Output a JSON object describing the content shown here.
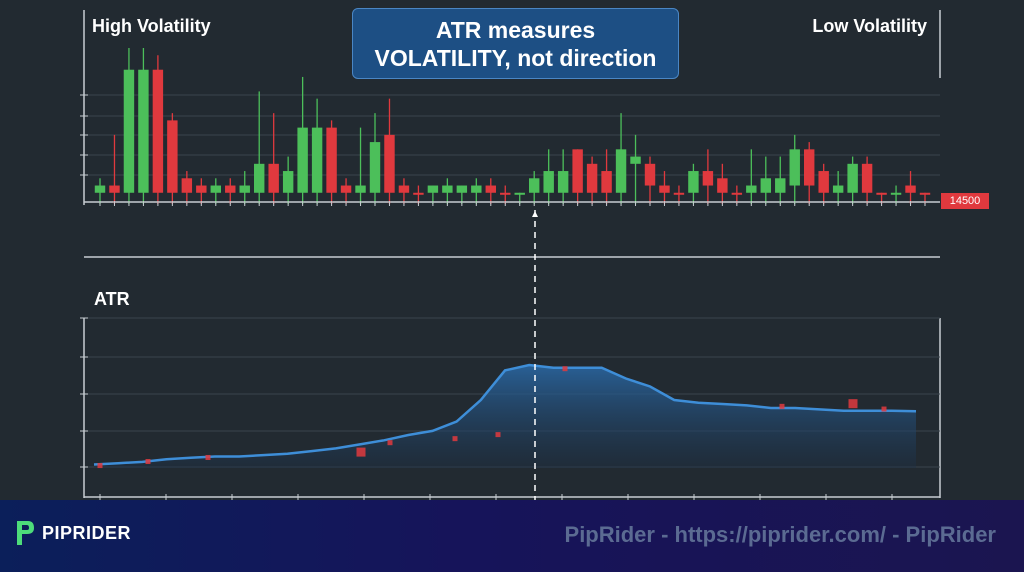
{
  "header": {
    "left_label": "High Volatility",
    "right_label": "Low Volatility",
    "callout_line1": "ATR measures",
    "callout_line2": "VOLATILITY, not direction"
  },
  "price_tag": "14500",
  "atr_panel": {
    "label": "ATR"
  },
  "footer": {
    "brand": "PIPRIDER",
    "watermark": "PipRider - https://piprider.com/ - PipRider"
  },
  "colors": {
    "up": "#4cbf5a",
    "down": "#e0393e",
    "atr_line": "#3e8ed8",
    "atr_fill": "#1f4f7a",
    "marker": "#e0393e"
  },
  "chart_data": [
    {
      "type": "candlestick",
      "title": "",
      "series": [
        {
          "name": "",
          "values": [
            {
              "o": 1,
              "h": 3,
              "l": 0,
              "c": 2,
              "dir": "up"
            },
            {
              "o": 2,
              "h": 9,
              "l": 0,
              "c": 1,
              "dir": "down"
            },
            {
              "o": 1,
              "h": 21,
              "l": 0,
              "c": 18,
              "dir": "up"
            },
            {
              "o": 1,
              "h": 21,
              "l": 0,
              "c": 18,
              "dir": "up"
            },
            {
              "o": 18,
              "h": 20,
              "l": 0,
              "c": 1,
              "dir": "down"
            },
            {
              "o": 11,
              "h": 12,
              "l": 0,
              "c": 1,
              "dir": "down"
            },
            {
              "o": 3,
              "h": 4,
              "l": 0,
              "c": 1,
              "dir": "down"
            },
            {
              "o": 2,
              "h": 3,
              "l": 0,
              "c": 1,
              "dir": "down"
            },
            {
              "o": 1,
              "h": 3,
              "l": 0,
              "c": 2,
              "dir": "up"
            },
            {
              "o": 2,
              "h": 3,
              "l": 0,
              "c": 1,
              "dir": "down"
            },
            {
              "o": 1,
              "h": 4,
              "l": 0,
              "c": 2,
              "dir": "up"
            },
            {
              "o": 1,
              "h": 15,
              "l": 0,
              "c": 5,
              "dir": "up"
            },
            {
              "o": 5,
              "h": 12,
              "l": 0,
              "c": 1,
              "dir": "down"
            },
            {
              "o": 1,
              "h": 6,
              "l": 0,
              "c": 4,
              "dir": "up"
            },
            {
              "o": 1,
              "h": 17,
              "l": 0,
              "c": 10,
              "dir": "up"
            },
            {
              "o": 1,
              "h": 14,
              "l": 0,
              "c": 10,
              "dir": "up"
            },
            {
              "o": 10,
              "h": 11,
              "l": 0,
              "c": 1,
              "dir": "down"
            },
            {
              "o": 2,
              "h": 3,
              "l": 0,
              "c": 1,
              "dir": "down"
            },
            {
              "o": 1,
              "h": 10,
              "l": 0,
              "c": 2,
              "dir": "up"
            },
            {
              "o": 1,
              "h": 12,
              "l": 0,
              "c": 8,
              "dir": "up"
            },
            {
              "o": 9,
              "h": 14,
              "l": 0,
              "c": 1,
              "dir": "down"
            },
            {
              "o": 2,
              "h": 3,
              "l": 0,
              "c": 1,
              "dir": "down"
            },
            {
              "o": 1,
              "h": 2,
              "l": 0,
              "c": 1,
              "dir": "down"
            },
            {
              "o": 1,
              "h": 2,
              "l": 0,
              "c": 2,
              "dir": "up"
            },
            {
              "o": 1,
              "h": 3,
              "l": 0,
              "c": 2,
              "dir": "up"
            },
            {
              "o": 1,
              "h": 2,
              "l": 0,
              "c": 2,
              "dir": "up"
            },
            {
              "o": 1,
              "h": 3,
              "l": 0,
              "c": 2,
              "dir": "up"
            },
            {
              "o": 2,
              "h": 3,
              "l": 0,
              "c": 1,
              "dir": "down"
            },
            {
              "o": 1,
              "h": 2,
              "l": 0,
              "c": 1,
              "dir": "down"
            },
            {
              "o": 1,
              "h": 1,
              "l": 0,
              "c": 1,
              "dir": "up"
            },
            {
              "o": 1,
              "h": 4,
              "l": 0,
              "c": 3,
              "dir": "up"
            },
            {
              "o": 1,
              "h": 7,
              "l": 0,
              "c": 4,
              "dir": "up"
            },
            {
              "o": 1,
              "h": 7,
              "l": 0,
              "c": 4,
              "dir": "up"
            },
            {
              "o": 7,
              "h": 7,
              "l": 0,
              "c": 1,
              "dir": "down"
            },
            {
              "o": 5,
              "h": 6,
              "l": 0,
              "c": 1,
              "dir": "down"
            },
            {
              "o": 4,
              "h": 7,
              "l": 0,
              "c": 1,
              "dir": "down"
            },
            {
              "o": 1,
              "h": 12,
              "l": 0,
              "c": 7,
              "dir": "up"
            },
            {
              "o": 6,
              "h": 9,
              "l": 0,
              "c": 5,
              "dir": "up"
            },
            {
              "o": 5,
              "h": 6,
              "l": 0,
              "c": 2,
              "dir": "down"
            },
            {
              "o": 2,
              "h": 4,
              "l": 0,
              "c": 1,
              "dir": "down"
            },
            {
              "o": 1,
              "h": 2,
              "l": 0,
              "c": 1,
              "dir": "down"
            },
            {
              "o": 1,
              "h": 5,
              "l": 0,
              "c": 4,
              "dir": "up"
            },
            {
              "o": 4,
              "h": 7,
              "l": 0,
              "c": 2,
              "dir": "down"
            },
            {
              "o": 3,
              "h": 5,
              "l": 0,
              "c": 1,
              "dir": "down"
            },
            {
              "o": 1,
              "h": 2,
              "l": 0,
              "c": 1,
              "dir": "down"
            },
            {
              "o": 1,
              "h": 7,
              "l": 0,
              "c": 2,
              "dir": "up"
            },
            {
              "o": 1,
              "h": 6,
              "l": 0,
              "c": 3,
              "dir": "up"
            },
            {
              "o": 1,
              "h": 6,
              "l": 0,
              "c": 3,
              "dir": "up"
            },
            {
              "o": 2,
              "h": 9,
              "l": 0,
              "c": 7,
              "dir": "up"
            },
            {
              "o": 7,
              "h": 8,
              "l": 0,
              "c": 2,
              "dir": "down"
            },
            {
              "o": 4,
              "h": 5,
              "l": 0,
              "c": 1,
              "dir": "down"
            },
            {
              "o": 1,
              "h": 4,
              "l": 0,
              "c": 2,
              "dir": "up"
            },
            {
              "o": 1,
              "h": 6,
              "l": 0,
              "c": 5,
              "dir": "up"
            },
            {
              "o": 5,
              "h": 6,
              "l": 0,
              "c": 1,
              "dir": "down"
            },
            {
              "o": 1,
              "h": 1,
              "l": 0,
              "c": 1,
              "dir": "down"
            },
            {
              "o": 1,
              "h": 2,
              "l": 0,
              "c": 1,
              "dir": "up"
            },
            {
              "o": 2,
              "h": 4,
              "l": 0,
              "c": 1,
              "dir": "down"
            },
            {
              "o": 1,
              "h": 1,
              "l": 0,
              "c": 1,
              "dir": "down"
            }
          ]
        }
      ]
    },
    {
      "type": "area",
      "title": "",
      "ylabel": "ATR",
      "series": [
        {
          "name": "",
          "values": [
            1.0,
            1.05,
            1.1,
            1.2,
            1.25,
            1.3,
            1.3,
            1.35,
            1.4,
            1.5,
            1.6,
            1.75,
            1.9,
            2.1,
            2.25,
            2.6,
            3.4,
            4.5,
            4.7,
            4.6,
            4.6,
            4.6,
            4.2,
            3.9,
            3.4,
            3.3,
            3.25,
            3.2,
            3.1,
            3.1,
            3.05,
            3.0,
            3.0,
            3.0,
            2.98
          ]
        }
      ],
      "markers": [
        1.0,
        1.15,
        1.3,
        1.5,
        1.85,
        2.0,
        2.15,
        4.6,
        3.2,
        3.3,
        3.1
      ]
    }
  ]
}
